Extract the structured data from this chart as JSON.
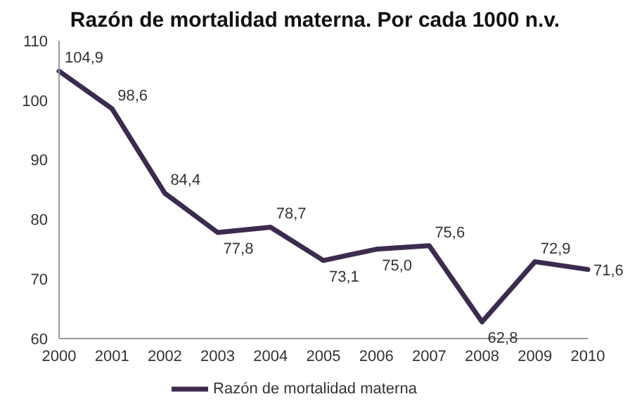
{
  "chart_data": {
    "type": "line",
    "title": "Razón de mortalidad materna. Por cada 1000 n.v.",
    "categories": [
      "2000",
      "2001",
      "2002",
      "2003",
      "2004",
      "2005",
      "2006",
      "2007",
      "2008",
      "2009",
      "2010"
    ],
    "series": [
      {
        "name": "Razón de mortalidad materna",
        "color": "#3d2b4f",
        "values": [
          104.9,
          98.6,
          84.4,
          77.8,
          78.7,
          73.1,
          75.0,
          75.6,
          62.8,
          72.9,
          71.6
        ],
        "value_labels": [
          "104,9",
          "98,6",
          "84,4",
          "77,8",
          "78,7",
          "73,1",
          "75,0",
          "75,6",
          "62,8",
          "72,9",
          "71,6"
        ]
      }
    ],
    "ylim": [
      60,
      110
    ],
    "yticks": [
      60,
      70,
      80,
      90,
      100,
      110
    ],
    "grid": false,
    "legend": "bottom",
    "marker": "none",
    "line_style": "solid"
  }
}
